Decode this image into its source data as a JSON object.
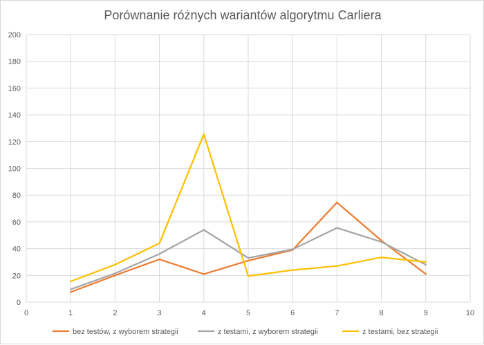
{
  "chart_data": {
    "type": "line",
    "title": "Porównanie różnych wariantów algorytmu Carliera",
    "xlabel": "",
    "ylabel": "",
    "xlim": [
      0,
      10
    ],
    "ylim": [
      0,
      200
    ],
    "x_ticks": [
      0,
      1,
      2,
      3,
      4,
      5,
      6,
      7,
      8,
      9,
      10
    ],
    "y_ticks": [
      0,
      20,
      40,
      60,
      80,
      100,
      120,
      140,
      160,
      180,
      200
    ],
    "grid": true,
    "legend_position": "bottom",
    "x": [
      1,
      2,
      3,
      4,
      5,
      6,
      7,
      8,
      9
    ],
    "series": [
      {
        "name": "bez testów, z wyborem strategii",
        "color": "#ED7D31",
        "values": [
          7.5,
          20,
          32,
          21,
          31,
          39,
          74.5,
          46,
          21
        ]
      },
      {
        "name": "z testami, z wyborem strategii",
        "color": "#A5A5A5",
        "values": [
          9.5,
          21.5,
          36,
          54,
          33,
          39.5,
          55.5,
          45,
          28
        ]
      },
      {
        "name": "z testami, bez strategii",
        "color": "#FFC000",
        "values": [
          15.5,
          28,
          44,
          125.5,
          19.5,
          24,
          27,
          33.5,
          30
        ]
      }
    ],
    "colors": {
      "grid": "#d9d9d9",
      "axis_text": "#595959"
    }
  }
}
